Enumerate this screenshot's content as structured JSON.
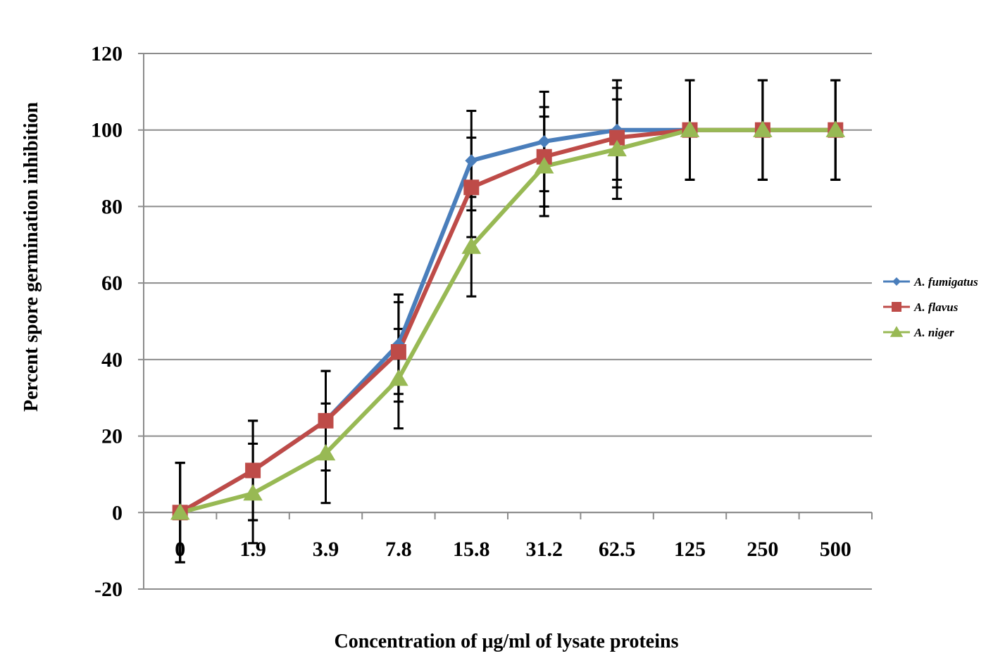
{
  "chart_data": {
    "type": "line",
    "xlabel": "Concentration of μg/ml of lysate  proteins",
    "ylabel": "Percent spore germination inhibition",
    "categories": [
      "0",
      "1.9",
      "3.9",
      "7.8",
      "15.8",
      "31.2",
      "62.5",
      "125",
      "250",
      "500"
    ],
    "ylim": [
      -20,
      120
    ],
    "yticks": [
      -20,
      0,
      20,
      40,
      60,
      80,
      100,
      120
    ],
    "grid": true,
    "legend_position": "right",
    "series": [
      {
        "name": "A. fumigatus",
        "color": "#4a7ebb",
        "marker": "diamond",
        "values": [
          0,
          11,
          24,
          44,
          92,
          97,
          100,
          100,
          100,
          100
        ],
        "error": [
          13,
          13,
          13,
          13,
          13,
          13,
          13,
          13,
          13,
          13
        ]
      },
      {
        "name": "A. flavus",
        "color": "#be4b48",
        "marker": "square",
        "values": [
          0,
          11,
          24,
          42,
          85,
          93,
          98,
          100,
          100,
          100
        ],
        "error": [
          13,
          13,
          13,
          13,
          13,
          13,
          13,
          13,
          13,
          13
        ]
      },
      {
        "name": "A. niger",
        "color": "#98b954",
        "marker": "triangle",
        "values": [
          0,
          5,
          15.5,
          35,
          69.5,
          90.5,
          95,
          100,
          100,
          100
        ],
        "error": [
          13,
          13,
          13,
          13,
          13,
          13,
          13,
          13,
          13,
          13
        ]
      }
    ]
  }
}
